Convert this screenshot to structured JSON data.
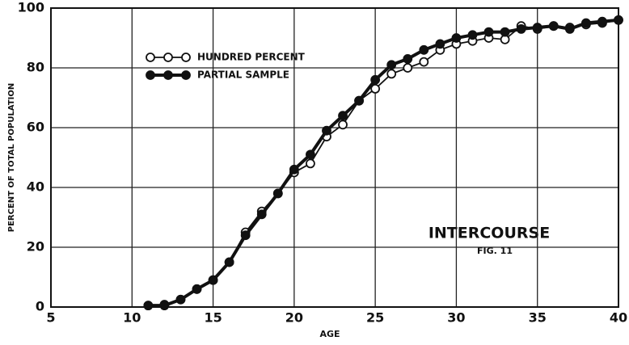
{
  "chart_data": {
    "type": "line",
    "annotations": [
      "INTERCOURSE",
      "FIG. 11"
    ],
    "xlabel": "AGE",
    "ylabel": "PERCENT OF TOTAL POPULATION",
    "x": [
      11,
      12,
      13,
      14,
      15,
      16,
      17,
      18,
      19,
      20,
      21,
      22,
      23,
      24,
      25,
      26,
      27,
      28,
      29,
      30,
      31,
      32,
      33,
      34,
      35,
      36,
      37,
      38,
      39,
      40
    ],
    "series": [
      {
        "name": "HUNDRED PERCENT",
        "color": "#111111",
        "marker": "open",
        "values": [
          0.5,
          0.8,
          2.5,
          6,
          9,
          15,
          25,
          32,
          38,
          45,
          48,
          57,
          61,
          69,
          73,
          78,
          80,
          82,
          86,
          88,
          89,
          90,
          89.5,
          94,
          93,
          94,
          93.5,
          94.5,
          95,
          96
        ]
      },
      {
        "name": "PARTIAL SAMPLE",
        "color": "#111111",
        "marker": "filled",
        "values": [
          0.5,
          0.5,
          2.5,
          6,
          9,
          15,
          24,
          31,
          38,
          46,
          51,
          59,
          64,
          69,
          76,
          81,
          83,
          86,
          88,
          90,
          91,
          92,
          92,
          93,
          93.5,
          94,
          93,
          95,
          95.5,
          96
        ]
      }
    ],
    "xlim": [
      5,
      40
    ],
    "xticks": [
      5,
      10,
      15,
      20,
      25,
      30,
      35,
      40
    ],
    "ylim": [
      0,
      100
    ],
    "yticks": [
      0,
      20,
      40,
      60,
      80,
      100
    ],
    "grid": true
  }
}
